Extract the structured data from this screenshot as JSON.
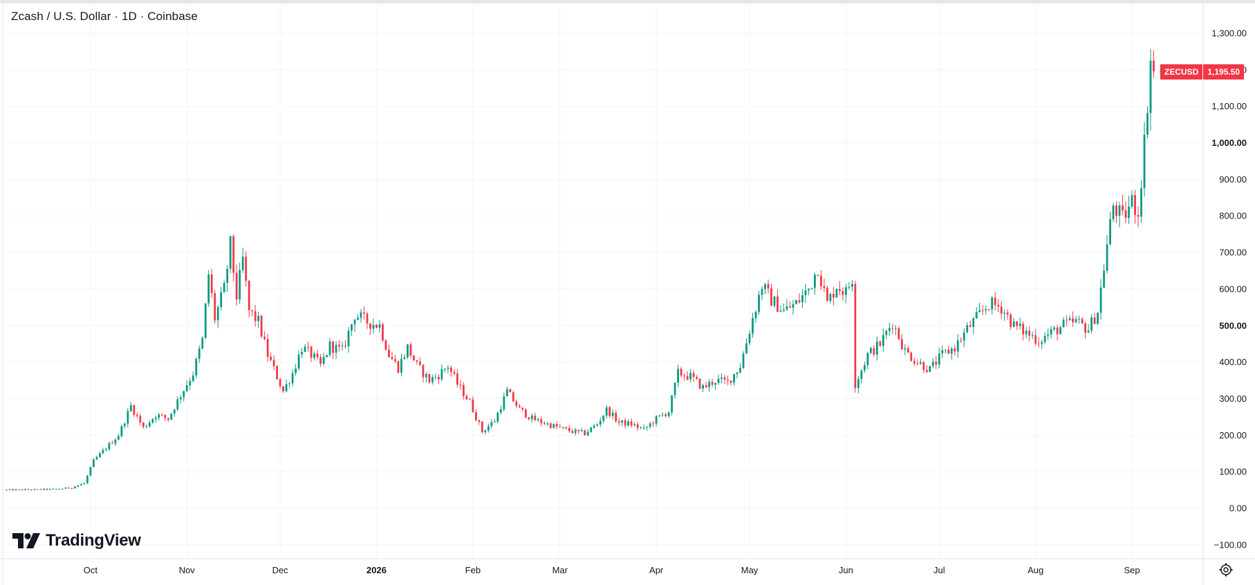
{
  "header": {
    "title": "Zcash / U.S. Dollar · 1D · Coinbase"
  },
  "branding": {
    "name": "TradingView"
  },
  "price_tag": {
    "symbol": "ZECUSD",
    "value": "1,195.50",
    "color": "#f23645"
  },
  "colors": {
    "up": "#089981",
    "down": "#f23645",
    "grid": "#f0f3fa",
    "axis_border": "#e0e3eb"
  },
  "icons": {
    "settings": "gear-icon",
    "logo": "tradingview-logo-icon"
  },
  "chart_data": {
    "type": "candlestick",
    "title": "Zcash / U.S. Dollar · 1D · Coinbase",
    "symbol": "ZECUSD",
    "interval": "1D",
    "exchange": "Coinbase",
    "y_axis_side": "right",
    "ylim": [
      -100,
      1300
    ],
    "y_ticks": [
      {
        "value": 1300,
        "label": "1,300.00"
      },
      {
        "value": 1200,
        "label": "1,200.00"
      },
      {
        "value": 1100,
        "label": "1,100.00"
      },
      {
        "value": 1000,
        "label": "1,000.00",
        "bold": true
      },
      {
        "value": 900,
        "label": "900.00"
      },
      {
        "value": 800,
        "label": "800.00"
      },
      {
        "value": 700,
        "label": "700.00"
      },
      {
        "value": 600,
        "label": "600.00"
      },
      {
        "value": 500,
        "label": "500.00",
        "bold": true
      },
      {
        "value": 400,
        "label": "400.00"
      },
      {
        "value": 300,
        "label": "300.00"
      },
      {
        "value": 200,
        "label": "200.00"
      },
      {
        "value": 100,
        "label": "100.00"
      },
      {
        "value": 0,
        "label": "0.00"
      },
      {
        "value": -100,
        "label": "−100.00"
      }
    ],
    "x_start": "2025-09-03",
    "x_end": "2026-09-09",
    "x_ticks": [
      {
        "date": "2025-10-01",
        "label": "Oct"
      },
      {
        "date": "2025-11-01",
        "label": "Nov"
      },
      {
        "date": "2025-12-01",
        "label": "Dec"
      },
      {
        "date": "2026-01-01",
        "label": "2026",
        "bold": true
      },
      {
        "date": "2026-02-01",
        "label": "Feb"
      },
      {
        "date": "2026-03-01",
        "label": "Mar"
      },
      {
        "date": "2026-04-01",
        "label": "Apr"
      },
      {
        "date": "2026-05-01",
        "label": "May"
      },
      {
        "date": "2026-06-01",
        "label": "Jun"
      },
      {
        "date": "2026-07-01",
        "label": "Jul"
      },
      {
        "date": "2026-08-01",
        "label": "Aug"
      },
      {
        "date": "2026-09-01",
        "label": "Sep"
      }
    ],
    "last_price": 1195.5,
    "close_path": [
      [
        "2025-09-03",
        50
      ],
      [
        "2025-09-20",
        52
      ],
      [
        "2025-09-25",
        57
      ],
      [
        "2025-09-29",
        68
      ],
      [
        "2025-10-02",
        130
      ],
      [
        "2025-10-06",
        165
      ],
      [
        "2025-10-10",
        200
      ],
      [
        "2025-10-14",
        280
      ],
      [
        "2025-10-18",
        220
      ],
      [
        "2025-10-22",
        255
      ],
      [
        "2025-10-26",
        245
      ],
      [
        "2025-10-30",
        310
      ],
      [
        "2025-11-03",
        370
      ],
      [
        "2025-11-06",
        460
      ],
      [
        "2025-11-08",
        640
      ],
      [
        "2025-11-10",
        520
      ],
      [
        "2025-11-13",
        600
      ],
      [
        "2025-11-15",
        720
      ],
      [
        "2025-11-17",
        580
      ],
      [
        "2025-11-19",
        680
      ],
      [
        "2025-11-21",
        540
      ],
      [
        "2025-11-24",
        510
      ],
      [
        "2025-11-27",
        420
      ],
      [
        "2025-11-30",
        360
      ],
      [
        "2025-12-02",
        320
      ],
      [
        "2025-12-05",
        370
      ],
      [
        "2025-12-08",
        440
      ],
      [
        "2025-12-11",
        420
      ],
      [
        "2025-12-14",
        390
      ],
      [
        "2025-12-17",
        445
      ],
      [
        "2025-12-21",
        430
      ],
      [
        "2025-12-25",
        530
      ],
      [
        "2025-12-29",
        510
      ],
      [
        "2026-01-02",
        500
      ],
      [
        "2026-01-05",
        420
      ],
      [
        "2026-01-08",
        385
      ],
      [
        "2026-01-11",
        440
      ],
      [
        "2026-01-14",
        390
      ],
      [
        "2026-01-18",
        350
      ],
      [
        "2026-01-21",
        365
      ],
      [
        "2026-01-24",
        390
      ],
      [
        "2026-01-27",
        340
      ],
      [
        "2026-01-31",
        290
      ],
      [
        "2026-02-04",
        210
      ],
      [
        "2026-02-08",
        240
      ],
      [
        "2026-02-12",
        320
      ],
      [
        "2026-02-16",
        270
      ],
      [
        "2026-02-20",
        245
      ],
      [
        "2026-02-25",
        230
      ],
      [
        "2026-03-01",
        220
      ],
      [
        "2026-03-05",
        210
      ],
      [
        "2026-03-09",
        205
      ],
      [
        "2026-03-13",
        230
      ],
      [
        "2026-03-16",
        270
      ],
      [
        "2026-03-20",
        235
      ],
      [
        "2026-03-24",
        230
      ],
      [
        "2026-03-28",
        215
      ],
      [
        "2026-04-01",
        245
      ],
      [
        "2026-04-05",
        265
      ],
      [
        "2026-04-08",
        370
      ],
      [
        "2026-04-12",
        360
      ],
      [
        "2026-04-16",
        330
      ],
      [
        "2026-04-20",
        350
      ],
      [
        "2026-04-24",
        345
      ],
      [
        "2026-04-28",
        390
      ],
      [
        "2026-05-02",
        520
      ],
      [
        "2026-05-05",
        610
      ],
      [
        "2026-05-08",
        570
      ],
      [
        "2026-05-12",
        540
      ],
      [
        "2026-05-16",
        560
      ],
      [
        "2026-05-20",
        600
      ],
      [
        "2026-05-23",
        660
      ],
      [
        "2026-05-26",
        560
      ],
      [
        "2026-05-29",
        610
      ],
      [
        "2026-06-01",
        590
      ],
      [
        "2026-06-03",
        630
      ],
      [
        "2026-06-04",
        340
      ],
      [
        "2026-06-08",
        420
      ],
      [
        "2026-06-12",
        450
      ],
      [
        "2026-06-16",
        510
      ],
      [
        "2026-06-20",
        430
      ],
      [
        "2026-06-24",
        400
      ],
      [
        "2026-06-28",
        380
      ],
      [
        "2026-07-02",
        420
      ],
      [
        "2026-07-06",
        440
      ],
      [
        "2026-07-10",
        490
      ],
      [
        "2026-07-14",
        530
      ],
      [
        "2026-07-17",
        560
      ],
      [
        "2026-07-21",
        550
      ],
      [
        "2026-07-25",
        500
      ],
      [
        "2026-07-29",
        480
      ],
      [
        "2026-08-02",
        460
      ],
      [
        "2026-08-06",
        480
      ],
      [
        "2026-08-10",
        500
      ],
      [
        "2026-08-14",
        510
      ],
      [
        "2026-08-18",
        490
      ],
      [
        "2026-08-21",
        540
      ],
      [
        "2026-08-24",
        720
      ],
      [
        "2026-08-26",
        830
      ],
      [
        "2026-08-29",
        790
      ],
      [
        "2026-09-01",
        840
      ],
      [
        "2026-09-03",
        810
      ],
      [
        "2026-09-05",
        1000
      ],
      [
        "2026-09-07",
        1230
      ],
      [
        "2026-09-08",
        1195.5
      ]
    ],
    "grid": true,
    "legend": "none"
  }
}
